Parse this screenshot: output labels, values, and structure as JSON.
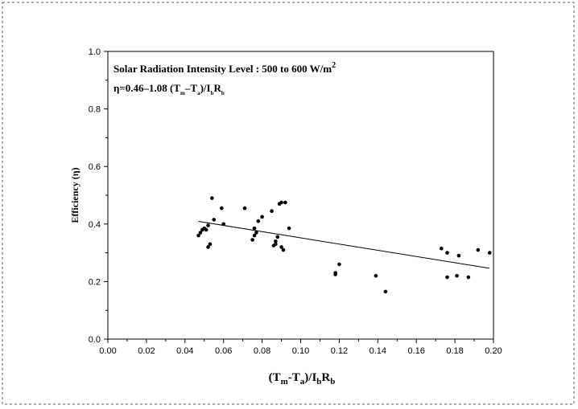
{
  "chart_data": {
    "type": "scatter",
    "xlim": [
      0.0,
      0.2
    ],
    "ylim": [
      0.0,
      1.0
    ],
    "x_ticks": [
      "0.00",
      "0.02",
      "0.04",
      "0.06",
      "0.08",
      "0.10",
      "0.12",
      "0.14",
      "0.16",
      "0.18",
      "0.20"
    ],
    "y_ticks": [
      "0.0",
      "0.2",
      "0.4",
      "0.6",
      "0.8",
      "1.0"
    ],
    "ylabel": "Efficiency (η)",
    "xlabel": {
      "main": "(T",
      "sub_m": "m",
      "mid": "-T",
      "sub_a": "a",
      "slash": ")/I",
      "sub_b": "b",
      "R": "R",
      "sub_b2": "b"
    },
    "annotation_line1": {
      "text": "Solar Radiation Intensity Level  : 500 to 600 W/m",
      "sup": "2"
    },
    "annotation_line2": {
      "p1": "η=0.46–1.08 (T",
      "s1": "m",
      "p2": "–T",
      "s2": "a",
      "p3": ")/I",
      "s3": "b",
      "p4": "R",
      "s4": "b"
    },
    "grid": false,
    "fit_line": {
      "intercept": 0.46,
      "slope": -1.08,
      "x_range": [
        0.047,
        0.198
      ]
    },
    "points": [
      [
        0.047,
        0.36
      ],
      [
        0.048,
        0.37
      ],
      [
        0.049,
        0.38
      ],
      [
        0.05,
        0.385
      ],
      [
        0.051,
        0.38
      ],
      [
        0.052,
        0.32
      ],
      [
        0.053,
        0.33
      ],
      [
        0.052,
        0.395
      ],
      [
        0.054,
        0.49
      ],
      [
        0.055,
        0.415
      ],
      [
        0.059,
        0.455
      ],
      [
        0.06,
        0.4
      ],
      [
        0.071,
        0.455
      ],
      [
        0.075,
        0.345
      ],
      [
        0.076,
        0.36
      ],
      [
        0.076,
        0.385
      ],
      [
        0.077,
        0.37
      ],
      [
        0.078,
        0.41
      ],
      [
        0.08,
        0.425
      ],
      [
        0.085,
        0.445
      ],
      [
        0.086,
        0.325
      ],
      [
        0.087,
        0.34
      ],
      [
        0.087,
        0.33
      ],
      [
        0.088,
        0.355
      ],
      [
        0.089,
        0.47
      ],
      [
        0.09,
        0.475
      ],
      [
        0.091,
        0.31
      ],
      [
        0.09,
        0.32
      ],
      [
        0.092,
        0.475
      ],
      [
        0.094,
        0.385
      ],
      [
        0.118,
        0.23
      ],
      [
        0.118,
        0.225
      ],
      [
        0.12,
        0.26
      ],
      [
        0.139,
        0.22
      ],
      [
        0.144,
        0.165
      ],
      [
        0.173,
        0.315
      ],
      [
        0.176,
        0.3
      ],
      [
        0.176,
        0.215
      ],
      [
        0.181,
        0.22
      ],
      [
        0.182,
        0.29
      ],
      [
        0.187,
        0.215
      ],
      [
        0.192,
        0.31
      ],
      [
        0.198,
        0.3
      ]
    ]
  }
}
